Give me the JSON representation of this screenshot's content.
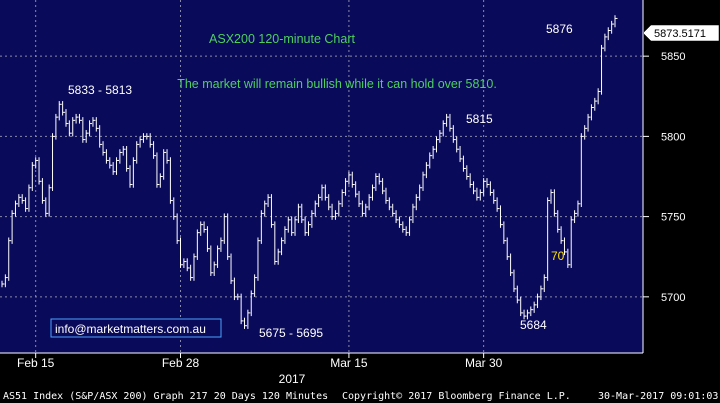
{
  "chart_data": {
    "type": "line",
    "style": "ohlc-bars",
    "title": "ASX200 120-minute Chart",
    "subtitle": "The market will remain bullish while it can hold over 5810.",
    "ylim": [
      5665,
      5885
    ],
    "y_ticks": [
      {
        "v": 5700,
        "label": "5700"
      },
      {
        "v": 5750,
        "label": "5750"
      },
      {
        "v": 5800,
        "label": "5800"
      },
      {
        "v": 5850,
        "label": "5850"
      }
    ],
    "last_price": 5873.5171,
    "last_price_label": "5873.5171",
    "x_ticks": [
      {
        "i": 10,
        "label": "Feb 15"
      },
      {
        "i": 53,
        "label": "Feb 28"
      },
      {
        "i": 103,
        "label": "Mar 15"
      },
      {
        "i": 143,
        "label": "Mar 30"
      }
    ],
    "year_label": "2017",
    "grid": true,
    "annotations": [
      {
        "text": "5833 - 5813",
        "i": 16,
        "v": 5833
      },
      {
        "text": "5675 - 5695",
        "i": 64,
        "v": 5675
      },
      {
        "text": "5815",
        "i": 115,
        "v": 5815
      },
      {
        "text": "5684",
        "i": 127,
        "v": 5684
      },
      {
        "text": "5876",
        "i": 142,
        "v": 5876
      },
      {
        "text": "70",
        "i": 135,
        "v": 5710
      }
    ],
    "prices": [
      5708,
      5712,
      5735,
      5752,
      5758,
      5762,
      5760,
      5755,
      5768,
      5782,
      5785,
      5772,
      5760,
      5752,
      5768,
      5800,
      5812,
      5820,
      5815,
      5808,
      5802,
      5810,
      5812,
      5810,
      5798,
      5802,
      5808,
      5810,
      5805,
      5795,
      5790,
      5785,
      5782,
      5778,
      5785,
      5790,
      5792,
      5780,
      5770,
      5785,
      5795,
      5798,
      5800,
      5800,
      5795,
      5788,
      5770,
      5775,
      5790,
      5785,
      5760,
      5750,
      5735,
      5720,
      5722,
      5718,
      5712,
      5725,
      5740,
      5745,
      5742,
      5730,
      5715,
      5720,
      5730,
      5735,
      5750,
      5725,
      5710,
      5700,
      5700,
      5685,
      5682,
      5690,
      5702,
      5712,
      5735,
      5752,
      5758,
      5762,
      5745,
      5722,
      5728,
      5735,
      5742,
      5748,
      5740,
      5748,
      5756,
      5748,
      5740,
      5745,
      5752,
      5758,
      5762,
      5768,
      5762,
      5756,
      5750,
      5752,
      5758,
      5765,
      5772,
      5776,
      5770,
      5764,
      5758,
      5752,
      5756,
      5762,
      5768,
      5775,
      5772,
      5766,
      5760,
      5756,
      5752,
      5748,
      5745,
      5742,
      5740,
      5748,
      5756,
      5762,
      5768,
      5776,
      5782,
      5788,
      5792,
      5798,
      5802,
      5808,
      5812,
      5805,
      5798,
      5792,
      5786,
      5780,
      5775,
      5770,
      5766,
      5762,
      5765,
      5772,
      5770,
      5765,
      5760,
      5755,
      5745,
      5735,
      5725,
      5715,
      5705,
      5698,
      5690,
      5688,
      5690,
      5692,
      5695,
      5700,
      5705,
      5712,
      5760,
      5765,
      5752,
      5742,
      5735,
      5728,
      5720,
      5748,
      5752,
      5758,
      5800,
      5805,
      5812,
      5818,
      5822,
      5828,
      5855,
      5862,
      5866,
      5870,
      5873.5
    ]
  }
}
